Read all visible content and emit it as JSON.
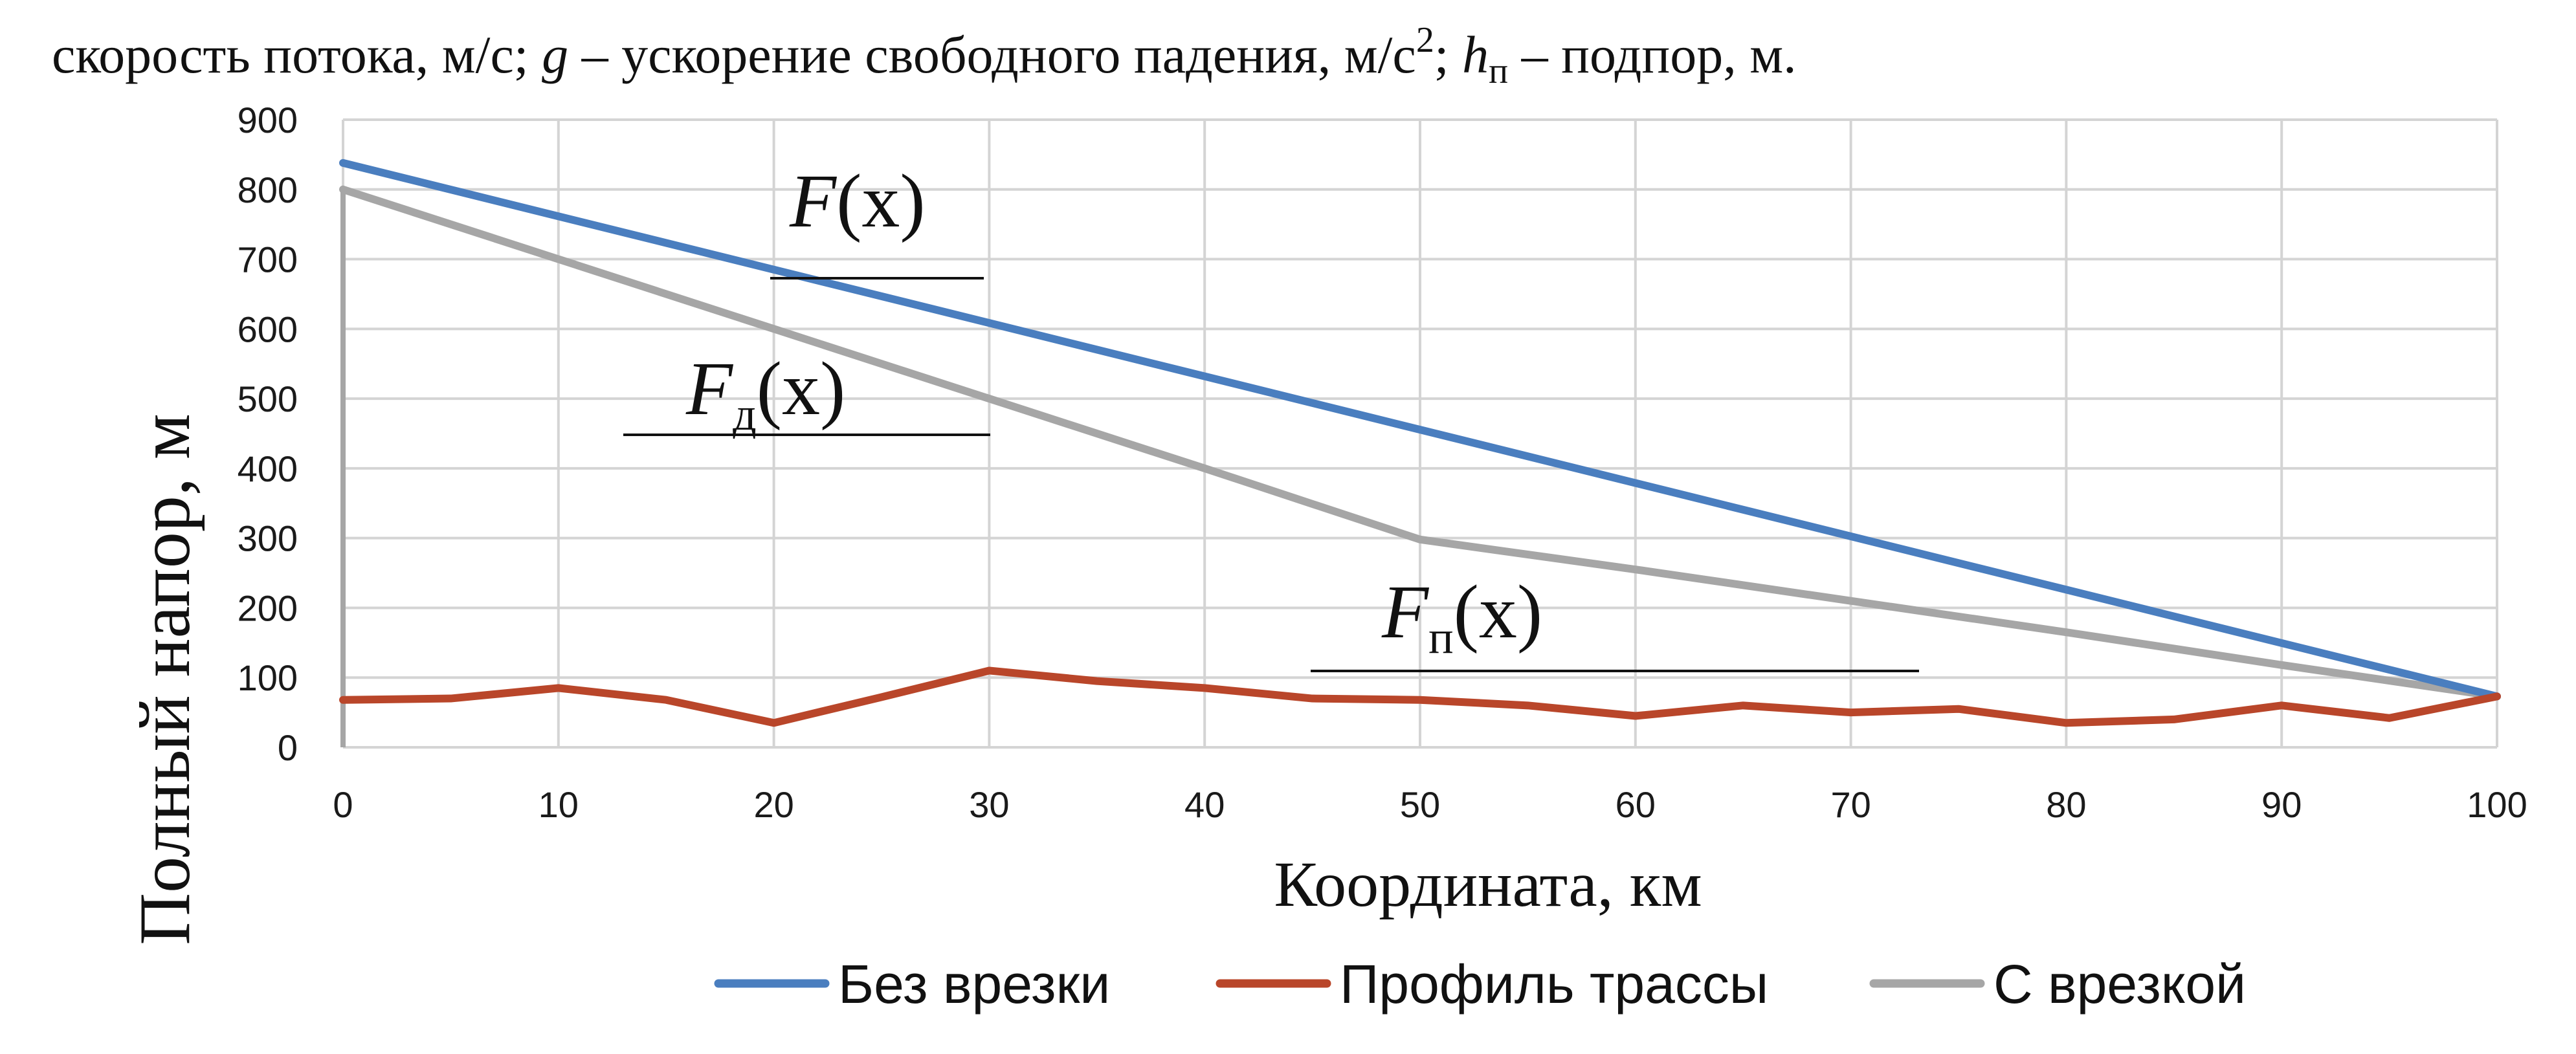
{
  "header_text": {
    "part1": "скорость  потока,  м/с;  ",
    "g_symbol": "g",
    "part2": "  –  ускорение  свободного     падения, м/с",
    "sup2": "2",
    "part3": "; ",
    "h_symbol": "h",
    "h_sub": "п",
    "part4": " – подпор, м."
  },
  "chart_data": {
    "type": "line",
    "xlabel": "Координата, км",
    "ylabel": "Полный напор, м",
    "xlim": [
      0,
      100
    ],
    "ylim": [
      0,
      900
    ],
    "x_ticks": [
      0,
      10,
      20,
      30,
      40,
      50,
      60,
      70,
      80,
      90,
      100
    ],
    "y_ticks": [
      0,
      100,
      200,
      300,
      400,
      500,
      600,
      700,
      800,
      900
    ],
    "grid": true,
    "legend_position": "bottom",
    "series": [
      {
        "name": "Без врезки",
        "color": "#4a7ebf",
        "x": [
          0,
          100
        ],
        "values": [
          838,
          73
        ]
      },
      {
        "name": "Профиль трассы",
        "color": "#b9462a",
        "x": [
          0,
          5,
          10,
          15,
          20,
          25,
          30,
          35,
          40,
          45,
          50,
          55,
          60,
          65,
          70,
          75,
          80,
          85,
          90,
          95,
          100
        ],
        "values": [
          68,
          70,
          85,
          68,
          35,
          72,
          110,
          95,
          85,
          70,
          68,
          60,
          45,
          60,
          50,
          55,
          35,
          40,
          60,
          42,
          73
        ]
      },
      {
        "name": "С врезкой",
        "color": "#a6a6a6",
        "x": [
          0,
          10,
          20,
          30,
          40,
          50,
          60,
          70,
          80,
          90,
          100
        ],
        "values": [
          800,
          700,
          600,
          500,
          400,
          298,
          255,
          210,
          165,
          118,
          73
        ]
      }
    ],
    "annotations": [
      {
        "main": "F",
        "sub": "",
        "arg": "(x)"
      },
      {
        "main": "F",
        "sub": "д",
        "arg": "(x)"
      },
      {
        "main": "F",
        "sub": "п",
        "arg": "(x)"
      }
    ]
  }
}
